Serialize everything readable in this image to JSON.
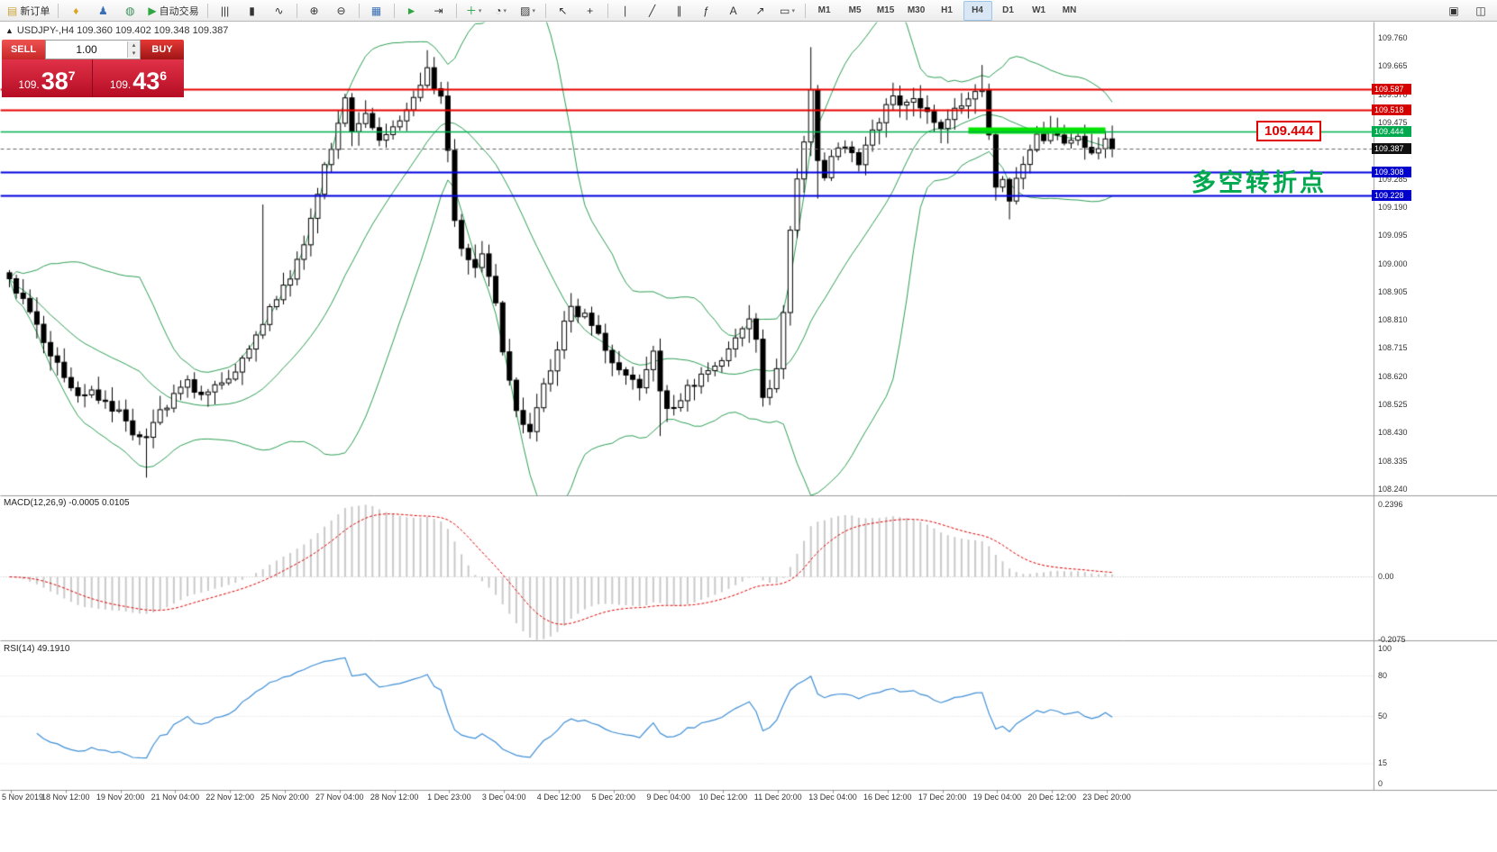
{
  "toolbar": {
    "dropdown_glyph": "▾",
    "groups": [
      {
        "name": "orders",
        "items": [
          {
            "name": "new-order-button",
            "label": "新订单",
            "glyph": "▤",
            "glyph_color": "#caa63a"
          }
        ]
      },
      {
        "name": "quick",
        "items": [
          {
            "name": "market-depth-icon",
            "glyph": "♦",
            "glyph_color": "#d9a520"
          },
          {
            "name": "accounts-icon",
            "glyph": "♟",
            "glyph_color": "#3b6fb5"
          },
          {
            "name": "web-terminal-icon",
            "glyph": "◍",
            "glyph_color": "#3b8f5a"
          },
          {
            "name": "autotrading-button",
            "label": "自动交易",
            "glyph": "▶",
            "glyph_color": "#2fa642"
          }
        ]
      },
      {
        "name": "chart-type",
        "items": [
          {
            "name": "bar-chart-icon",
            "glyph": "|||"
          },
          {
            "name": "candlestick-chart-icon",
            "glyph": "▮"
          },
          {
            "name": "line-chart-icon",
            "glyph": "∿"
          }
        ]
      },
      {
        "name": "zoom",
        "items": [
          {
            "name": "zoom-in-icon",
            "glyph": "⊕"
          },
          {
            "name": "zoom-out-icon",
            "glyph": "⊖"
          }
        ]
      },
      {
        "name": "windows",
        "items": [
          {
            "name": "tile-windows-icon",
            "glyph": "▦",
            "glyph_color": "#3b6fb5"
          }
        ]
      },
      {
        "name": "scroll",
        "items": [
          {
            "name": "auto-scroll-icon",
            "glyph": "►",
            "glyph_color": "#2fa642"
          },
          {
            "name": "chart-shift-icon",
            "glyph": "⇥"
          }
        ]
      },
      {
        "name": "insert",
        "items": [
          {
            "name": "indicators-button",
            "glyph": "＋",
            "glyph_color": "#1f9e3c",
            "dropdown": true
          },
          {
            "name": "periods-button",
            "glyph": "◔",
            "dropdown": true
          },
          {
            "name": "templates-button",
            "glyph": "▨",
            "dropdown": true
          }
        ]
      },
      {
        "name": "cursor",
        "items": [
          {
            "name": "cursor-icon",
            "glyph": "↖"
          },
          {
            "name": "crosshair-icon",
            "glyph": "+"
          }
        ]
      },
      {
        "name": "objects",
        "items": [
          {
            "name": "vertical-line-icon",
            "glyph": "∣"
          },
          {
            "name": "trendline-icon",
            "glyph": "╱"
          },
          {
            "name": "equidistant-channel-icon",
            "glyph": "∥"
          },
          {
            "name": "fibonacci-icon",
            "glyph": "ƒ"
          },
          {
            "name": "text-label-icon",
            "glyph": "A"
          },
          {
            "name": "arrow-object-icon",
            "glyph": "↗"
          },
          {
            "name": "shapes-icon",
            "glyph": "▭",
            "dropdown": true
          }
        ]
      },
      {
        "name": "timeframes",
        "items": [
          {
            "name": "timeframe-m1",
            "label": "M1"
          },
          {
            "name": "timeframe-m5",
            "label": "M5"
          },
          {
            "name": "timeframe-m15",
            "label": "M15"
          },
          {
            "name": "timeframe-m30",
            "label": "M30"
          },
          {
            "name": "timeframe-h1",
            "label": "H1"
          },
          {
            "name": "timeframe-h4",
            "label": "H4",
            "active": true
          },
          {
            "name": "timeframe-d1",
            "label": "D1"
          },
          {
            "name": "timeframe-w1",
            "label": "W1"
          },
          {
            "name": "timeframe-mn",
            "label": "MN"
          }
        ]
      },
      {
        "name": "window-controls",
        "push_right": true,
        "items": [
          {
            "name": "restore-window-icon",
            "glyph": "▣"
          },
          {
            "name": "split-window-icon",
            "glyph": "◫"
          }
        ]
      }
    ]
  },
  "chart_header": {
    "collapse_arrow": "▲",
    "symbol_line": "USDJPY-,H4  109.360 109.402 109.348 109.387"
  },
  "quote_panel": {
    "sell_label": "SELL",
    "buy_label": "BUY",
    "volume": "1.00",
    "spinner_up": "▴",
    "spinner_down": "▾",
    "sell_price_prefix": "109.",
    "sell_price_big": "38",
    "sell_price_sup": "7",
    "buy_price_prefix": "109.",
    "buy_price_big": "43",
    "buy_price_sup": "6"
  },
  "annotations": {
    "turning_point_text": "多空转折点",
    "price_label_box": "109.444"
  },
  "levels": [
    {
      "price": 109.587,
      "color": "red"
    },
    {
      "price": 109.518,
      "color": "red"
    },
    {
      "price": 109.444,
      "color": "green"
    },
    {
      "price": 109.387,
      "color": "black",
      "current": true
    },
    {
      "price": 109.308,
      "color": "blue"
    },
    {
      "price": 109.228,
      "color": "blue"
    }
  ],
  "price_axis": {
    "ticks": [
      109.76,
      109.665,
      109.57,
      109.475,
      109.38,
      109.285,
      109.19,
      109.095,
      109.0,
      108.905,
      108.81,
      108.715,
      108.62,
      108.525,
      108.43,
      108.335,
      108.24
    ]
  },
  "macd_panel": {
    "label": "MACD(12,26,9) -0.0005 0.0105",
    "axis": [
      "0.2396",
      "0.00",
      "-0.2075"
    ]
  },
  "rsi_panel": {
    "label": "RSI(14) 49.1910",
    "axis": [
      "100",
      "80",
      "50",
      "15",
      "0"
    ]
  },
  "time_axis": [
    "5 Nov 2019",
    "18 Nov 12:00",
    "19 Nov 20:00",
    "21 Nov 04:00",
    "22 Nov 12:00",
    "25 Nov 20:00",
    "27 Nov 04:00",
    "28 Nov 12:00",
    "1 Dec 23:00",
    "3 Dec 04:00",
    "4 Dec 12:00",
    "5 Dec 20:00",
    "9 Dec 04:00",
    "10 Dec 12:00",
    "11 Dec 20:00",
    "13 Dec 04:00",
    "16 Dec 12:00",
    "17 Dec 20:00",
    "19 Dec 04:00",
    "20 Dec 12:00",
    "23 Dec 20:00"
  ],
  "colors": {
    "tag_red": "#d40000",
    "tag_green": "#00a84f",
    "tag_blue": "#0000cc",
    "tag_black": "#101010",
    "line_red": "#e80000",
    "line_green": "#00b050",
    "line_blue": "#0000e0",
    "band_green": "#2e9e55",
    "rsi_blue": "#3f8fd6",
    "macd_signal": "#e00000",
    "macd_bar": "#c9c9c9",
    "highlight_green": "#00e400",
    "annotation_green": "#00a84f",
    "candle_up": "#ffffff",
    "candle_down": "#000000"
  },
  "chart_data": {
    "type": "candlestick+indicators",
    "symbol": "USDJPY-",
    "timeframe": "H4",
    "current_bar": {
      "open": 109.36,
      "high": 109.402,
      "low": 109.348,
      "close": 109.387
    },
    "bid": 109.387,
    "ask": 109.436,
    "y_range": [
      108.24,
      109.76
    ],
    "candle_count": 162,
    "close_anchors": [
      [
        0,
        108.95
      ],
      [
        2,
        108.88
      ],
      [
        4,
        108.78
      ],
      [
        6,
        108.7
      ],
      [
        8,
        108.62
      ],
      [
        10,
        108.55
      ],
      [
        12,
        108.58
      ],
      [
        14,
        108.52
      ],
      [
        16,
        108.5
      ],
      [
        18,
        108.44
      ],
      [
        20,
        108.42
      ],
      [
        22,
        108.5
      ],
      [
        24,
        108.56
      ],
      [
        26,
        108.6
      ],
      [
        28,
        108.55
      ],
      [
        30,
        108.58
      ],
      [
        32,
        108.62
      ],
      [
        34,
        108.68
      ],
      [
        36,
        108.76
      ],
      [
        38,
        108.85
      ],
      [
        40,
        108.92
      ],
      [
        42,
        109.0
      ],
      [
        44,
        109.15
      ],
      [
        46,
        109.32
      ],
      [
        48,
        109.48
      ],
      [
        49,
        109.56
      ],
      [
        50,
        109.46
      ],
      [
        52,
        109.51
      ],
      [
        54,
        109.42
      ],
      [
        56,
        109.47
      ],
      [
        58,
        109.52
      ],
      [
        60,
        109.6
      ],
      [
        61,
        109.65
      ],
      [
        62,
        109.6
      ],
      [
        63,
        109.55
      ],
      [
        64,
        109.38
      ],
      [
        65,
        109.14
      ],
      [
        66,
        109.06
      ],
      [
        68,
        108.98
      ],
      [
        69,
        109.04
      ],
      [
        70,
        108.95
      ],
      [
        71,
        108.86
      ],
      [
        72,
        108.72
      ],
      [
        73,
        108.6
      ],
      [
        74,
        108.5
      ],
      [
        75,
        108.46
      ],
      [
        76,
        108.44
      ],
      [
        77,
        108.5
      ],
      [
        78,
        108.58
      ],
      [
        79,
        108.65
      ],
      [
        80,
        108.72
      ],
      [
        81,
        108.8
      ],
      [
        82,
        108.85
      ],
      [
        84,
        108.82
      ],
      [
        86,
        108.75
      ],
      [
        88,
        108.68
      ],
      [
        90,
        108.62
      ],
      [
        92,
        108.58
      ],
      [
        93,
        108.64
      ],
      [
        94,
        108.7
      ],
      [
        95,
        108.56
      ],
      [
        96,
        108.5
      ],
      [
        98,
        108.55
      ],
      [
        100,
        108.6
      ],
      [
        102,
        108.64
      ],
      [
        104,
        108.68
      ],
      [
        106,
        108.76
      ],
      [
        108,
        108.8
      ],
      [
        109,
        108.74
      ],
      [
        110,
        108.55
      ],
      [
        111,
        108.58
      ],
      [
        112,
        108.66
      ],
      [
        113,
        108.85
      ],
      [
        114,
        109.1
      ],
      [
        115,
        109.28
      ],
      [
        116,
        109.42
      ],
      [
        117,
        109.6
      ],
      [
        118,
        109.35
      ],
      [
        119,
        109.3
      ],
      [
        120,
        109.36
      ],
      [
        122,
        109.4
      ],
      [
        124,
        109.35
      ],
      [
        126,
        109.44
      ],
      [
        128,
        109.52
      ],
      [
        129,
        109.58
      ],
      [
        130,
        109.54
      ],
      [
        132,
        109.57
      ],
      [
        134,
        109.5
      ],
      [
        136,
        109.47
      ],
      [
        138,
        109.52
      ],
      [
        140,
        109.56
      ],
      [
        142,
        109.6
      ],
      [
        143,
        109.45
      ],
      [
        144,
        109.26
      ],
      [
        145,
        109.3
      ],
      [
        146,
        109.22
      ],
      [
        147,
        109.28
      ],
      [
        148,
        109.34
      ],
      [
        149,
        109.38
      ],
      [
        150,
        109.42
      ],
      [
        152,
        109.44
      ],
      [
        154,
        109.4
      ],
      [
        156,
        109.42
      ],
      [
        158,
        109.38
      ],
      [
        160,
        109.41
      ],
      [
        161,
        109.387
      ]
    ],
    "wick_overrides": [
      [
        20,
        "low",
        108.28
      ],
      [
        37,
        "high",
        109.2
      ],
      [
        61,
        "high",
        109.72
      ],
      [
        95,
        "low",
        108.42
      ],
      [
        117,
        "high",
        109.73
      ],
      [
        118,
        "low",
        109.22
      ],
      [
        142,
        "high",
        109.67
      ],
      [
        146,
        "low",
        109.15
      ]
    ],
    "bollinger": {
      "period": 20,
      "deviation": 2
    },
    "macd": {
      "fast": 12,
      "slow": 26,
      "signal": 9,
      "current_main": -0.0005,
      "current_signal": 0.0105,
      "range": [
        -0.2075,
        0.2396
      ]
    },
    "rsi": {
      "period": 14,
      "current": 49.191,
      "levels": [
        0,
        15,
        50,
        80,
        100
      ]
    },
    "highlight_segment": {
      "price": 109.449,
      "from_candle": 140,
      "to_candle": 160
    }
  }
}
